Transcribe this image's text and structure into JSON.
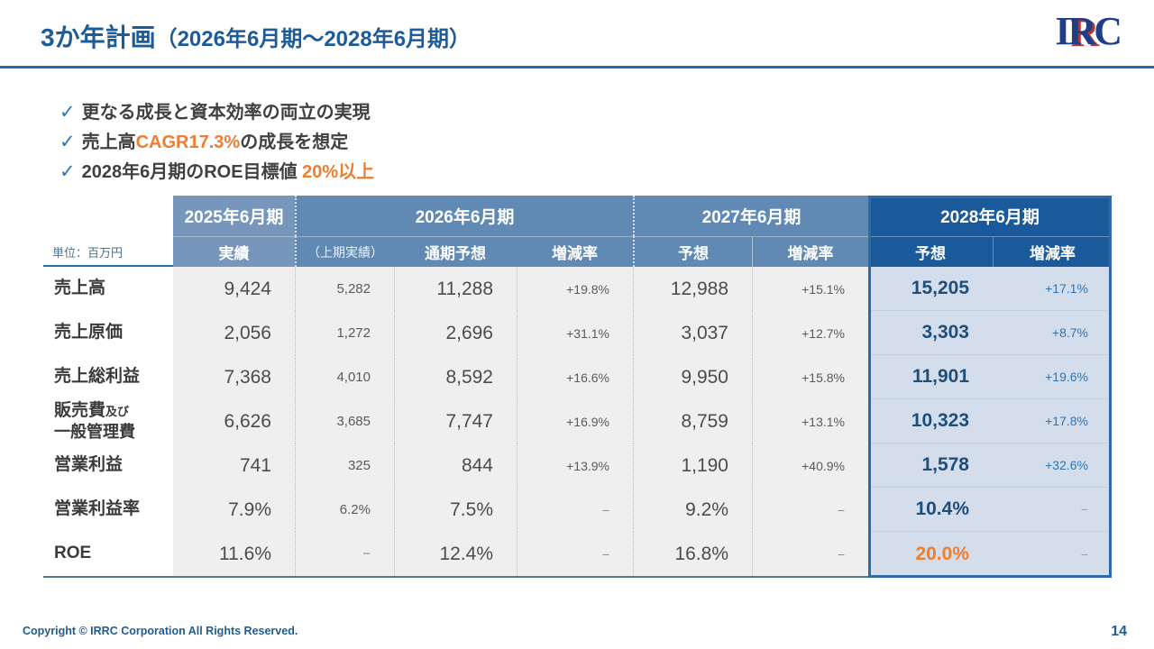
{
  "header": {
    "title": "3か年計画",
    "title_suffix": "（2026年6月期～2028年6月期）",
    "logo": {
      "i": "I",
      "r": "R",
      "r_shadow": "R",
      "c": "C"
    }
  },
  "bullets": {
    "check_glyph": "✓",
    "items": [
      {
        "pre": "更なる成長と資本効率の両立の実現",
        "highlight": "",
        "post": ""
      },
      {
        "pre": "売上高",
        "highlight": "CAGR17.3%",
        "post": "の成長を想定"
      },
      {
        "pre": "2028年6月期のROE目標値 ",
        "highlight": "20%以上",
        "post": ""
      }
    ]
  },
  "table": {
    "unit_label": "単位：百万円",
    "col_groups": [
      {
        "label": "2025年6月期",
        "subs": [
          "実績"
        ]
      },
      {
        "label": "2026年6月期",
        "subs": [
          "（上期実績）",
          "通期予想",
          "増減率"
        ]
      },
      {
        "label": "2027年6月期",
        "subs": [
          "予想",
          "増減率"
        ]
      },
      {
        "label": "2028年6月期",
        "subs": [
          "予想",
          "増減率"
        ]
      }
    ],
    "rows": [
      {
        "label": "売上高",
        "values": [
          "9,424",
          "5,282",
          "11,288",
          "+19.8%",
          "12,988",
          "+15.1%",
          "15,205",
          "+17.1%"
        ]
      },
      {
        "label": "売上原価",
        "values": [
          "2,056",
          "1,272",
          "2,696",
          "+31.1%",
          "3,037",
          "+12.7%",
          "3,303",
          "+8.7%"
        ]
      },
      {
        "label": "売上総利益",
        "values": [
          "7,368",
          "4,010",
          "8,592",
          "+16.6%",
          "9,950",
          "+15.8%",
          "11,901",
          "+19.6%"
        ]
      },
      {
        "label": "販売費",
        "label_small": "及び",
        "label2": "一般管理費",
        "values": [
          "6,626",
          "3,685",
          "7,747",
          "+16.9%",
          "8,759",
          "+13.1%",
          "10,323",
          "+17.8%"
        ]
      },
      {
        "label": "営業利益",
        "values": [
          "741",
          "325",
          "844",
          "+13.9%",
          "1,190",
          "+40.9%",
          "1,578",
          "+32.6%"
        ]
      },
      {
        "label": "営業利益率",
        "values": [
          "7.9%",
          "6.2%",
          "7.5%",
          "−",
          "9.2%",
          "−",
          "10.4%",
          "−"
        ]
      },
      {
        "label": "ROE",
        "values": [
          "11.6%",
          "−",
          "12.4%",
          "−",
          "16.8%",
          "−",
          "20.0%",
          "−"
        ],
        "orange_value_col": 6
      }
    ]
  },
  "footer": {
    "copyright": "Copyright © IRRC Corporation All Rights Reserved.",
    "page": "14"
  },
  "colors": {
    "title_blue": "#1D5C96",
    "accent_orange": "#ED7D31",
    "header_blue_2025": "#7697BB",
    "header_blue_2026_2027": "#6089B3",
    "header_blue_2028": "#1A5A9A",
    "highlight_value_blue": "#1F4E79",
    "logo_blue": "#1E3F85",
    "logo_red": "#B5342F"
  }
}
